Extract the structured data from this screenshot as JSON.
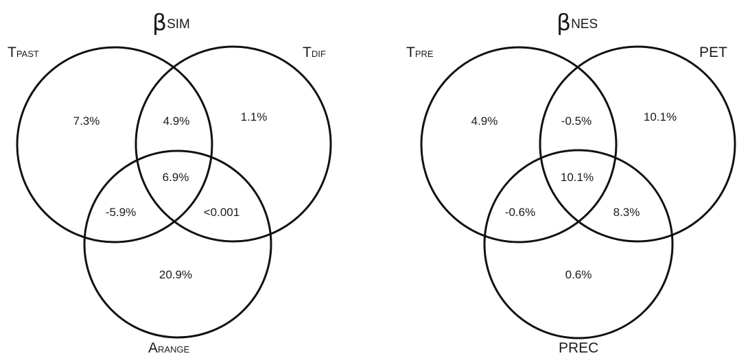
{
  "panels": [
    {
      "title": {
        "main": "β",
        "sub": "SIM"
      },
      "sets": {
        "top_left": {
          "main": "T",
          "sub": "PAST"
        },
        "top_right": {
          "main": "T",
          "sub": "DIF"
        },
        "bottom": {
          "main": "A",
          "sub": "RANGE"
        }
      },
      "regions": {
        "left_only": "7.3%",
        "right_only": "1.1%",
        "left_right": "4.9%",
        "center": "6.9%",
        "left_bottom": "-5.9%",
        "right_bottom": "<0.001",
        "bottom_only": "20.9%"
      }
    },
    {
      "title": {
        "main": "β",
        "sub": "NES"
      },
      "sets": {
        "top_left": {
          "main": "T",
          "sub": "PRE"
        },
        "top_right": {
          "main": "PET",
          "sub": ""
        },
        "bottom": {
          "main": "PREC",
          "sub": ""
        }
      },
      "regions": {
        "left_only": "4.9%",
        "right_only": "10.1%",
        "left_right": "-0.5%",
        "center": "10.1%",
        "left_bottom": "-0.6%",
        "right_bottom": "8.3%",
        "bottom_only": "0.6%"
      }
    }
  ]
}
